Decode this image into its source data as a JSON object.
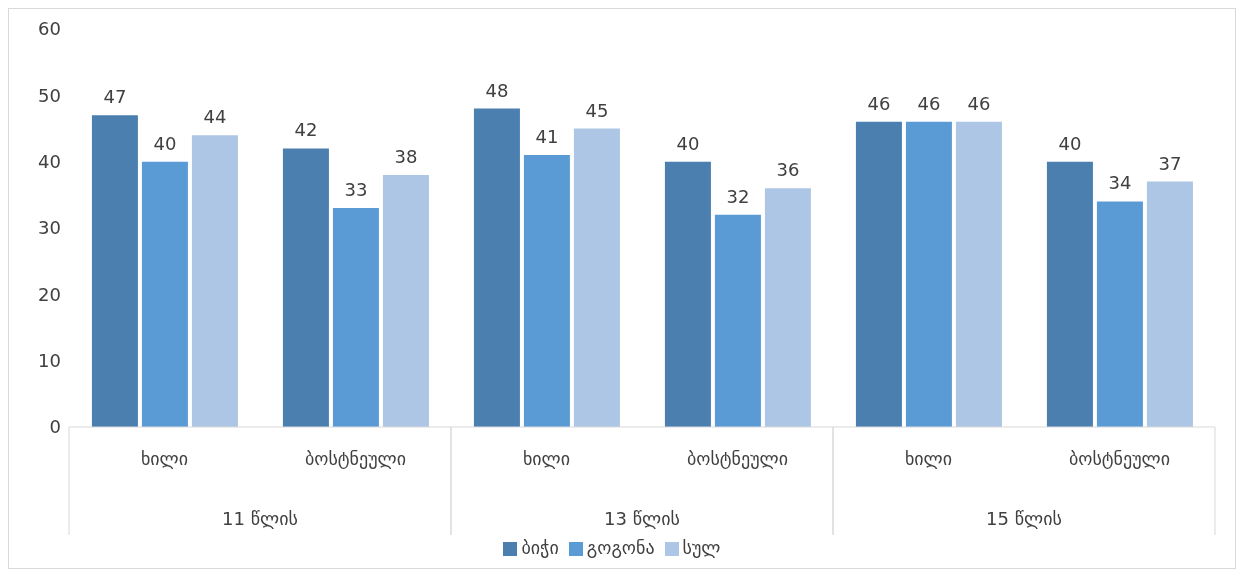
{
  "chart_data": {
    "type": "bar",
    "categories": [
      "ხილი",
      "ბოსტნეული",
      "ხილი",
      "ბოსტნეული",
      "ხილი",
      "ბოსტნეული"
    ],
    "annotations": [
      "11 წლის",
      "13 წლის",
      "15 წლის"
    ],
    "series": [
      {
        "name": "ბიჭი",
        "color": "#4a7fb0",
        "values": [
          47,
          42,
          48,
          40,
          46,
          40
        ]
      },
      {
        "name": "გოგონა",
        "color": "#5b9bd5",
        "values": [
          40,
          33,
          41,
          32,
          46,
          34
        ]
      },
      {
        "name": "სულ",
        "color": "#adc6e5",
        "values": [
          44,
          38,
          45,
          36,
          46,
          37
        ]
      }
    ],
    "ylim": [
      0,
      60
    ],
    "yticks": [
      0,
      10,
      20,
      30,
      40,
      50,
      60
    ],
    "grid": false,
    "legend": "bottom",
    "data_labels": true
  }
}
